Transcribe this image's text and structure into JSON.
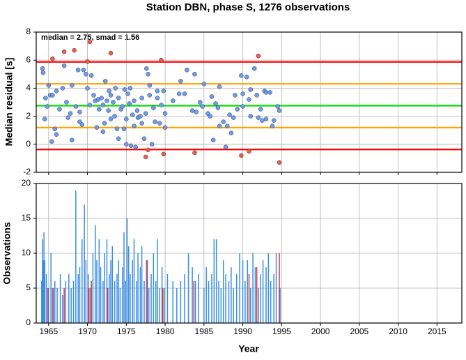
{
  "chart_data": [
    {
      "type": "scatter",
      "title": "Station DBN, phase S, 1276 observations",
      "ylabel": "Median residual [s]",
      "annotation": "median = 2.75, smad = 1.56",
      "xlim": [
        1963.4,
        2018.2
      ],
      "xticks": [
        1965,
        1970,
        1975,
        1980,
        1985,
        1990,
        1995,
        2000,
        2005,
        2010,
        2015
      ],
      "ylim": [
        -2,
        8
      ],
      "yticks": [
        -2,
        0,
        2,
        4,
        6,
        8
      ],
      "grid": true,
      "hlines": [
        {
          "value": 5.87,
          "color": "#ff0000"
        },
        {
          "value": 4.31,
          "color": "#ffa500"
        },
        {
          "value": 2.75,
          "color": "#00e000"
        },
        {
          "value": 1.19,
          "color": "#ffa500"
        },
        {
          "value": -0.37,
          "color": "#ff0000"
        }
      ],
      "series": [
        {
          "color": "#6b9cf2",
          "x": [
            1964.2,
            1964.3,
            1964.5,
            1964.6,
            1964.8,
            1965,
            1965.2,
            1965.5,
            1965.4,
            1965.8,
            1966,
            1966,
            1966.4,
            1966.8,
            1967,
            1967.3,
            1967.5,
            1967.8,
            1968,
            1968,
            1968.5,
            1968.8,
            1969,
            1969,
            1969.3,
            1969.5,
            1969.8,
            1970,
            1970.3,
            1970.5,
            1970.8,
            1971,
            1971.2,
            1971.4,
            1971.5,
            1971.8,
            1972,
            1972,
            1972.2,
            1972.3,
            1972.5,
            1972.7,
            1972.8,
            1973,
            1973,
            1973.3,
            1973.5,
            1973.6,
            1973.8,
            1974,
            1974,
            1974.3,
            1974.5,
            1974.7,
            1974.8,
            1975,
            1975,
            1975.2,
            1975.4,
            1975.5,
            1975.6,
            1975.8,
            1976,
            1976,
            1976.2,
            1976.4,
            1976.5,
            1976.8,
            1977,
            1977,
            1977.3,
            1977.5,
            1977.6,
            1977.8,
            1978,
            1978,
            1978.3,
            1978.5,
            1978.7,
            1979,
            1979,
            1979.3,
            1979.5,
            1979.8,
            1980,
            1980,
            1981,
            1981.8,
            1982,
            1982.5,
            1982.8,
            1983.5,
            1983.8,
            1984,
            1984.5,
            1984.8,
            1985,
            1985.5,
            1985.8,
            1986,
            1986.2,
            1986.5,
            1986.8,
            1987,
            1987,
            1987.5,
            1987.8,
            1988,
            1988.3,
            1988.5,
            1988.8,
            1989,
            1989.3,
            1989.8,
            1990,
            1990,
            1990.5,
            1990.8,
            1991,
            1991,
            1991.5,
            1991.8,
            1992,
            1992.3,
            1992.5,
            1992.8,
            1993,
            1993,
            1993.5,
            1993.8,
            1994,
            1994.5,
            1994.7
          ],
          "values": [
            5.4,
            5.1,
            1.8,
            3.3,
            2.7,
            4.2,
            3.5,
            3.5,
            0.2,
            1.1,
            0.7,
            3.8,
            2.5,
            4.0,
            5.6,
            3.0,
            1.9,
            2.2,
            0.3,
            4.2,
            2.7,
            5.3,
            1.6,
            2.3,
            1.4,
            5.3,
            5.0,
            4.0,
            2.8,
            4.9,
            3.5,
            3.1,
            1.2,
            3.2,
            2.5,
            3.3,
            2.8,
            0.9,
            1.5,
            4.5,
            3.1,
            2.4,
            3.8,
            1.8,
            3.5,
            3.0,
            2.0,
            4.0,
            1.1,
            3.3,
            0.4,
            2.5,
            2.7,
            1.1,
            3.9,
            1.8,
            0.0,
            3.6,
            2.9,
            4.0,
            -0.1,
            2.1,
            1.3,
            3.1,
            -0.2,
            2.4,
            1.9,
            2.0,
            3.3,
            1.5,
            0.4,
            2.2,
            5.4,
            5.0,
            3.5,
            4.2,
            0.0,
            2.6,
            1.6,
            3.3,
            3.8,
            1.5,
            2.8,
            3.8,
            2.2,
            1.2,
            3.1,
            3.6,
            4.5,
            3.6,
            5.3,
            2.4,
            5.0,
            2.3,
            3.0,
            2.7,
            4.3,
            2.2,
            2.0,
            3.4,
            0.3,
            2.9,
            2.6,
            4.1,
            1.3,
            1.6,
            -0.2,
            1.3,
            2.1,
            0.8,
            1.9,
            3.5,
            2.5,
            4.9,
            3.6,
            2.7,
            4.8,
            3.2,
            3.9,
            2.0,
            5.4,
            3.5,
            1.9,
            2.5,
            1.7,
            3.8,
            3.7,
            1.8,
            3.7,
            1.3,
            1.7,
            2.7,
            2.4
          ]
        },
        {
          "color": "#f25a4a",
          "x": [
            1965.5,
            1967,
            1968.3,
            1970.3,
            1970,
            1973,
            1979.5,
            1992,
            1977.5,
            1977.8,
            1979.8,
            1983.8,
            1989.8,
            1990.8,
            1994.7
          ],
          "values": [
            6.1,
            6.6,
            6.7,
            7.3,
            5.9,
            6.5,
            6.0,
            6.3,
            -0.9,
            -0.4,
            -0.7,
            -0.6,
            -0.8,
            -0.5,
            -1.3
          ]
        }
      ]
    },
    {
      "type": "bar",
      "xlabel": "Year",
      "ylabel": "Observations",
      "xlim": [
        1963.4,
        2018.2
      ],
      "xticks": [
        1965,
        1970,
        1975,
        1980,
        1985,
        1990,
        1995,
        2000,
        2005,
        2010,
        2015
      ],
      "ylim": [
        0,
        20
      ],
      "yticks": [
        0,
        5,
        10,
        15,
        20
      ],
      "grid": true,
      "series": [
        {
          "color": "#3a8ee6",
          "x": [
            1964.1,
            1964.2,
            1964.3,
            1964.4,
            1964.5,
            1964.7,
            1965,
            1965.3,
            1965.5,
            1965.8,
            1966.1,
            1966.5,
            1966.8,
            1967.2,
            1967.6,
            1967.9,
            1968.2,
            1968.5,
            1968.8,
            1969,
            1969.3,
            1969.6,
            1969.8,
            1970.1,
            1970.4,
            1970.7,
            1971,
            1971.2,
            1971.5,
            1971.7,
            1972,
            1972.2,
            1972.5,
            1972.8,
            1973,
            1973.2,
            1973.5,
            1973.8,
            1974,
            1974.2,
            1974.5,
            1974.7,
            1974.9,
            1975.1,
            1975.3,
            1975.5,
            1975.8,
            1976,
            1976.3,
            1976.5,
            1976.8,
            1977,
            1977.3,
            1977.6,
            1977.9,
            1978.2,
            1978.5,
            1978.8,
            1979,
            1979.3,
            1979.6,
            1979.9,
            1980.3,
            1981,
            1981.5,
            1982,
            1982.5,
            1983,
            1983.5,
            1983.9,
            1984.3,
            1985,
            1985.3,
            1985.6,
            1986,
            1986.3,
            1986.6,
            1986.9,
            1987.2,
            1987.5,
            1987.8,
            1988.2,
            1988.5,
            1988.8,
            1989.2,
            1989.6,
            1990,
            1990.3,
            1990.6,
            1991,
            1991.3,
            1991.6,
            1992,
            1992.3,
            1992.6,
            1993,
            1993.3,
            1993.6,
            1994,
            1994.3,
            1994.8
          ],
          "values": [
            6,
            12,
            9,
            13,
            9,
            7,
            5,
            10,
            5,
            6,
            5,
            7,
            4,
            6,
            7,
            5,
            6,
            19,
            7,
            8,
            12,
            17,
            9,
            7,
            5,
            10,
            14,
            9,
            12,
            8,
            6,
            10,
            12,
            7,
            9,
            11,
            6,
            7,
            9,
            5,
            8,
            13,
            6,
            15,
            11,
            7,
            9,
            12,
            6,
            10,
            8,
            11,
            6,
            9,
            5,
            7,
            10,
            6,
            12,
            5,
            8,
            5,
            7,
            6,
            5,
            6,
            7,
            10,
            8,
            6,
            7,
            5,
            8,
            6,
            7,
            12,
            12,
            6,
            5,
            9,
            7,
            6,
            8,
            5,
            7,
            10,
            9,
            6,
            9,
            5,
            10,
            8,
            5,
            7,
            9,
            8,
            10,
            6,
            7,
            10,
            5
          ]
        },
        {
          "color": "#e0303a",
          "x": [
            1964.9,
            1965.6,
            1967,
            1970.2,
            1970.5,
            1972.6,
            1977.7,
            1979.7,
            1983.7,
            1990.8,
            1991.8,
            1994.7
          ],
          "values": [
            5,
            5,
            5,
            5,
            6,
            5,
            9,
            5,
            6,
            7,
            8,
            10
          ]
        }
      ]
    }
  ]
}
